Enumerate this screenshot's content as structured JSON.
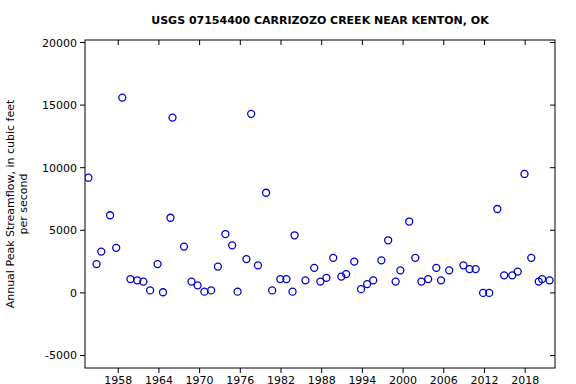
{
  "chart_data": {
    "type": "scatter",
    "title": "USGS 07154400 CARRIZOZO CREEK NEAR KENTON, OK",
    "y_label": "Annual Peak Streamflow, in cubic feet\nper second",
    "x": [
      1953.6,
      1954.8,
      1955.5,
      1956.8,
      1957.7,
      1958.6,
      1959.8,
      1960.8,
      1961.7,
      1962.7,
      1963.8,
      1964.6,
      1965.7,
      1966.0,
      1967.7,
      1968.8,
      1969.7,
      1970.7,
      1971.7,
      1972.7,
      1973.8,
      1974.8,
      1975.6,
      1976.9,
      1977.6,
      1978.6,
      1979.8,
      1980.7,
      1981.9,
      1982.8,
      1983.7,
      1984.0,
      1985.6,
      1986.9,
      1987.8,
      1988.7,
      1989.7,
      1990.9,
      1991.6,
      1992.8,
      1993.8,
      1994.7,
      1995.6,
      1996.8,
      1997.8,
      1998.9,
      1999.6,
      2000.9,
      2001.8,
      2002.7,
      2003.7,
      2004.9,
      2005.6,
      2006.8,
      2008.9,
      2009.8,
      2010.7,
      2011.8,
      2012.7,
      2013.9,
      2014.9,
      2016.1,
      2016.9,
      2017.9,
      2018.9,
      2020.0,
      2020.5,
      2021.6
    ],
    "values": [
      9200,
      2300,
      3300,
      6200,
      3600,
      15600,
      1100,
      1000,
      900,
      200,
      2300,
      50,
      6000,
      14000,
      3700,
      900,
      600,
      100,
      200,
      2100,
      4700,
      3800,
      100,
      2700,
      14300,
      2200,
      8000,
      200,
      1100,
      1100,
      100,
      4600,
      1000,
      2000,
      900,
      1200,
      2800,
      1300,
      1500,
      2500,
      300,
      700,
      1000,
      2600,
      4200,
      900,
      1800,
      5700,
      2800,
      900,
      1100,
      2000,
      1000,
      1800,
      2200,
      1900,
      1900,
      0,
      0,
      6700,
      1400,
      1400,
      1700,
      9500,
      2800,
      900,
      1100,
      1000
    ],
    "color": "#0000cc",
    "marker": "circle-open",
    "xlim": [
      1953.1,
      2022.4
    ],
    "xticks": [
      1958,
      1964,
      1970,
      1976,
      1982,
      1988,
      1994,
      2000,
      2006,
      2012,
      2018
    ],
    "ylim": [
      -6000,
      20200
    ],
    "yticks": [
      -5000,
      0,
      5000,
      10000,
      15000,
      20000
    ],
    "grid": false
  }
}
